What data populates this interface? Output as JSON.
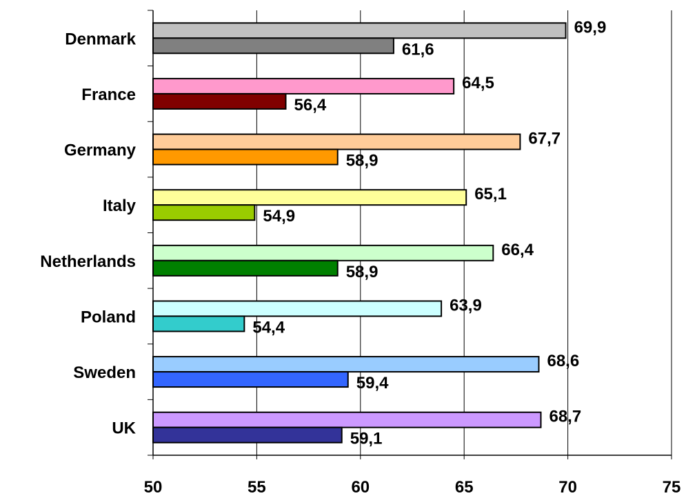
{
  "chart_data": {
    "type": "bar",
    "orientation": "horizontal",
    "title": "",
    "xlabel": "",
    "ylabel": "",
    "xlim": [
      50,
      75
    ],
    "x_ticks": [
      "50",
      "55",
      "60",
      "65",
      "70",
      "75"
    ],
    "grid": "vertical gridlines at each tick",
    "legend": "none",
    "categories": [
      {
        "name": "Denmark",
        "values": [
          69.9,
          61.6
        ],
        "labels": [
          "69,9",
          "61,6"
        ],
        "colors": [
          "#c0c0c0",
          "#808080"
        ]
      },
      {
        "name": "France",
        "values": [
          64.5,
          56.4
        ],
        "labels": [
          "64,5",
          "56,4"
        ],
        "colors": [
          "#ff99cc",
          "#800000"
        ]
      },
      {
        "name": "Germany",
        "values": [
          67.7,
          58.9
        ],
        "labels": [
          "67,7",
          "58,9"
        ],
        "colors": [
          "#ffcc99",
          "#ff9900"
        ]
      },
      {
        "name": "Italy",
        "values": [
          65.1,
          54.9
        ],
        "labels": [
          "65,1",
          "54,9"
        ],
        "colors": [
          "#ffff99",
          "#99cc00"
        ]
      },
      {
        "name": "Netherlands",
        "values": [
          66.4,
          58.9
        ],
        "labels": [
          "66,4",
          "58,9"
        ],
        "colors": [
          "#ccffcc",
          "#008000"
        ]
      },
      {
        "name": "Poland",
        "values": [
          63.9,
          54.4
        ],
        "labels": [
          "63,9",
          "54,4"
        ],
        "colors": [
          "#ccffff",
          "#33cccc"
        ]
      },
      {
        "name": "Sweden",
        "values": [
          68.6,
          59.4
        ],
        "labels": [
          "68,6",
          "59,4"
        ],
        "colors": [
          "#99ccff",
          "#3366ff"
        ]
      },
      {
        "name": "UK",
        "values": [
          68.7,
          59.1
        ],
        "labels": [
          "68,7",
          "59,1"
        ],
        "colors": [
          "#cc99ff",
          "#333399"
        ]
      }
    ]
  }
}
